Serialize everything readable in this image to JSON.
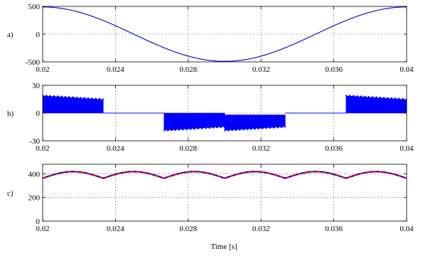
{
  "chart_data": [
    {
      "type": "line",
      "panel_label": "a)",
      "xlim": [
        0.02,
        0.04
      ],
      "ylim": [
        -500,
        500
      ],
      "x_ticks": [
        0.02,
        0.024,
        0.028,
        0.032,
        0.036,
        0.04
      ],
      "x_tick_labels": [
        "0.02",
        "0.024",
        "0.028",
        "0.032",
        "0.036",
        "0.04"
      ],
      "y_ticks": [
        500,
        0,
        -500
      ],
      "y_tick_labels": [
        "500",
        "0",
        "-500"
      ],
      "grid": true,
      "series": [
        {
          "color": "#0000cc",
          "x": [
            0.02,
            0.021,
            0.022,
            0.023,
            0.024,
            0.025,
            0.026,
            0.027,
            0.028,
            0.029,
            0.03,
            0.031,
            0.032,
            0.033,
            0.034,
            0.035,
            0.036,
            0.037,
            0.038,
            0.039,
            0.04
          ],
          "y": [
            490,
            466,
            396,
            288,
            151,
            0,
            -151,
            -288,
            -396,
            -466,
            -490,
            -466,
            -396,
            -288,
            -151,
            0,
            151,
            288,
            396,
            466,
            490
          ]
        }
      ]
    },
    {
      "type": "line",
      "panel_label": "b)",
      "xlim": [
        0.02,
        0.04
      ],
      "ylim": [
        -30,
        30
      ],
      "x_ticks": [
        0.02,
        0.024,
        0.028,
        0.032,
        0.036,
        0.04
      ],
      "x_tick_labels": [
        "0.02",
        "0.024",
        "0.028",
        "0.032",
        "0.036",
        "0.04"
      ],
      "y_ticks": [
        30,
        0,
        -30
      ],
      "y_tick_labels": [
        "30",
        "0",
        "-30"
      ],
      "grid": true,
      "series": [
        {
          "color": "#0000ff",
          "style": "high-frequency switching envelope",
          "segments": [
            {
              "x": [
                0.02,
                0.02333
              ],
              "upper": [
                20,
                16
              ],
              "lower": [
                0,
                0
              ]
            },
            {
              "x": [
                0.02333,
                0.02667
              ],
              "upper": [
                0,
                0
              ],
              "lower": [
                0,
                0
              ]
            },
            {
              "x": [
                0.02667,
                0.03
              ],
              "upper": [
                0,
                0
              ],
              "lower": [
                -20,
                -16
              ]
            },
            {
              "x": [
                0.03,
                0.03333
              ],
              "upper": [
                -2,
                -2
              ],
              "lower": [
                -20,
                -16
              ]
            },
            {
              "x": [
                0.03333,
                0.03667
              ],
              "upper": [
                0,
                0
              ],
              "lower": [
                0,
                0
              ]
            },
            {
              "x": [
                0.03667,
                0.04
              ],
              "upper": [
                20,
                16
              ],
              "lower": [
                0,
                0
              ]
            }
          ]
        }
      ]
    },
    {
      "type": "line",
      "panel_label": "c)",
      "xlim": [
        0.02,
        0.04
      ],
      "ylim": [
        0,
        480
      ],
      "x_ticks": [
        0.02,
        0.024,
        0.028,
        0.032,
        0.036,
        0.04
      ],
      "x_tick_labels": [
        "0.02",
        "0.024",
        "0.028",
        "0.032",
        "0.036",
        "0.04"
      ],
      "y_ticks": [
        400,
        200,
        0
      ],
      "y_tick_labels": [
        "400",
        "200",
        "0"
      ],
      "grid": true,
      "xlabel": "Time [s]",
      "series": [
        {
          "color": "#0000cc",
          "style": "solid",
          "period": 0.003333,
          "min": 362,
          "max": 418
        },
        {
          "color": "#ff0000",
          "style": "dashed",
          "period": 0.003333,
          "min": 362,
          "max": 418
        }
      ]
    }
  ]
}
